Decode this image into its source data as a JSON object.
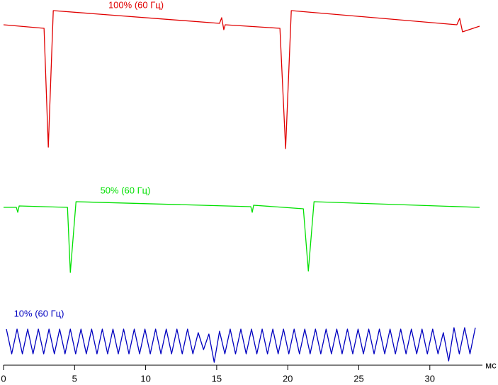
{
  "chart_data": {
    "type": "line",
    "x_label": "мс",
    "xlim": [
      0,
      33.7
    ],
    "xticks": [
      0,
      5,
      10,
      15,
      20,
      25,
      30
    ],
    "ylim": [
      0,
      520
    ],
    "series": [
      {
        "name": "100% (60 Гц)",
        "color": "#e00000",
        "x": [
          0,
          2.85,
          3.15,
          3.5,
          15.2,
          15.35,
          15.5,
          15.6,
          19.45,
          19.85,
          20.25,
          31.9,
          32.1,
          32.3,
          33.5
        ],
        "values": [
          485,
          480,
          312,
          505,
          487,
          495,
          478,
          485,
          480,
          310,
          505,
          485,
          494,
          475,
          483
        ]
      },
      {
        "name": "50% (60 Гц)",
        "color": "#00e000",
        "x": [
          0,
          0.9,
          1.0,
          1.1,
          4.5,
          4.7,
          5.1,
          17.4,
          17.5,
          17.6,
          21.1,
          21.45,
          21.85,
          33.5
        ],
        "values": [
          227,
          227,
          220,
          229,
          227,
          135,
          235,
          228,
          220,
          230,
          225,
          137,
          235,
          227
        ]
      },
      {
        "name": "10% (60 Гц)",
        "color": "#0000c0",
        "x": [
          0.2,
          0.575,
          0.95,
          1.325,
          1.7,
          2.075,
          2.45,
          2.825,
          3.2,
          3.575,
          3.95,
          4.325,
          4.7,
          5.075,
          5.45,
          5.825,
          6.2,
          6.575,
          6.95,
          7.325,
          7.7,
          8.075,
          8.45,
          8.825,
          9.2,
          9.575,
          9.95,
          10.325,
          10.7,
          11.075,
          11.45,
          11.825,
          12.2,
          12.575,
          12.95,
          13.325,
          13.7,
          14.075,
          14.45,
          14.825,
          15.2,
          15.575,
          15.95,
          16.325,
          16.7,
          17.075,
          17.45,
          17.825,
          18.2,
          18.575,
          18.95,
          19.325,
          19.7,
          20.075,
          20.45,
          20.825,
          21.2,
          21.575,
          21.95,
          22.325,
          22.7,
          23.075,
          23.45,
          23.825,
          24.2,
          24.575,
          24.95,
          25.325,
          25.7,
          26.075,
          26.45,
          26.825,
          27.2,
          27.575,
          27.95,
          28.325,
          28.7,
          29.075,
          29.45,
          29.825,
          30.2,
          30.575,
          30.95,
          31.325,
          31.7,
          32.075,
          32.45,
          32.825,
          33.2
        ],
        "values": [
          55,
          20,
          55,
          20,
          55,
          20,
          55,
          20,
          55,
          20,
          55,
          20,
          55,
          20,
          55,
          20,
          55,
          20,
          55,
          20,
          55,
          20,
          55,
          20,
          55,
          20,
          55,
          20,
          55,
          20,
          55,
          20,
          55,
          20,
          55,
          20,
          50,
          26,
          48,
          8,
          52,
          20,
          55,
          20,
          55,
          20,
          55,
          20,
          55,
          20,
          55,
          20,
          55,
          20,
          55,
          20,
          55,
          20,
          55,
          20,
          55,
          20,
          55,
          20,
          55,
          20,
          55,
          20,
          55,
          20,
          55,
          20,
          55,
          20,
          55,
          20,
          55,
          20,
          55,
          20,
          55,
          20,
          50,
          10,
          57,
          20,
          57,
          20,
          57
        ]
      }
    ]
  }
}
